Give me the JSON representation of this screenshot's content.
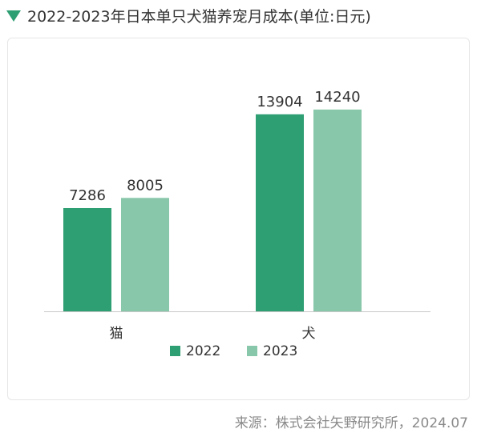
{
  "header": {
    "title": "2022-2023年日本单只犬猫养宠月成本(单位:日元)",
    "icon": "triangle-down-icon"
  },
  "source": "来源：株式会社矢野研究所，2024.07",
  "colors": {
    "series_2022": "#2e9e73",
    "series_2023": "#88c7aa",
    "axis": "#c8c8c8",
    "accent": "#2e9e73"
  },
  "chart_data": {
    "type": "bar",
    "categories": [
      "猫",
      "犬"
    ],
    "series": [
      {
        "name": "2022",
        "values": [
          7286,
          13904
        ]
      },
      {
        "name": "2023",
        "values": [
          8005,
          14240
        ]
      }
    ],
    "title": "2022-2023年日本单只犬猫养宠月成本(单位:日元)",
    "xlabel": "",
    "ylabel": "",
    "ylim": [
      0,
      17000
    ],
    "grid": false,
    "legend": "bottom"
  }
}
